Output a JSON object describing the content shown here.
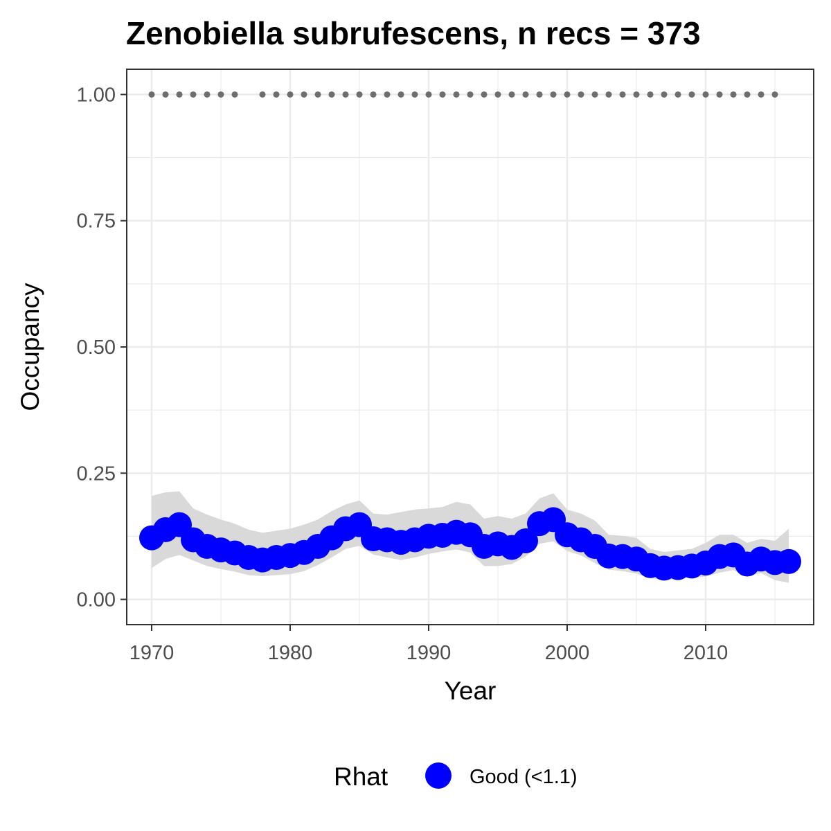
{
  "chart_data": {
    "type": "line",
    "title": "Zenobiella subrufescens, n recs = 373",
    "xlabel": "Year",
    "ylabel": "Occupancy",
    "xlim": [
      1968.2,
      2017.8
    ],
    "ylim": [
      -0.05,
      1.05
    ],
    "x_ticks": [
      1970,
      1980,
      1990,
      2000,
      2010
    ],
    "x_tick_labels": [
      "1970",
      "1980",
      "1990",
      "2000",
      "2010"
    ],
    "y_ticks": [
      0,
      0.25,
      0.5,
      0.75,
      1
    ],
    "y_tick_labels": [
      "0.00",
      "0.25",
      "0.50",
      "0.75",
      "1.00"
    ],
    "y_minor_ticks": [
      0.125,
      0.375,
      0.625,
      0.875
    ],
    "x_minor_ticks": [
      1975,
      1985,
      1995,
      2005,
      2015
    ],
    "grid": true,
    "legend": {
      "title": "Rhat",
      "position": "bottom",
      "entries": [
        {
          "label": "Good (<1.1)",
          "color": "#0000ff"
        }
      ]
    },
    "colors": {
      "points": "#0000ff",
      "ribbon": "#d9d9d9",
      "detections": "#6e6e6e",
      "grid": "#ebebeb",
      "panel_border": "#333333"
    },
    "series": [
      {
        "x": [
          1970,
          1971,
          1972,
          1973,
          1974,
          1975,
          1976,
          1977,
          1978,
          1979,
          1980,
          1981,
          1982,
          1983,
          1984,
          1985,
          1986,
          1987,
          1988,
          1989,
          1990,
          1991,
          1992,
          1993,
          1994,
          1995,
          1996,
          1997,
          1998,
          1999,
          2000,
          2001,
          2002,
          2003,
          2004,
          2005,
          2006,
          2007,
          2008,
          2009,
          2010,
          2011,
          2012,
          2013,
          2014,
          2015,
          2016
        ],
        "y": [
          0.122,
          0.138,
          0.148,
          0.118,
          0.105,
          0.098,
          0.092,
          0.083,
          0.078,
          0.083,
          0.087,
          0.093,
          0.105,
          0.122,
          0.14,
          0.148,
          0.12,
          0.118,
          0.113,
          0.118,
          0.125,
          0.127,
          0.133,
          0.128,
          0.105,
          0.11,
          0.103,
          0.116,
          0.15,
          0.158,
          0.128,
          0.118,
          0.105,
          0.086,
          0.085,
          0.08,
          0.067,
          0.062,
          0.063,
          0.066,
          0.072,
          0.085,
          0.088,
          0.07,
          0.08,
          0.073,
          0.075
        ],
        "lower": [
          0.062,
          0.08,
          0.088,
          0.077,
          0.066,
          0.06,
          0.055,
          0.048,
          0.046,
          0.048,
          0.05,
          0.056,
          0.068,
          0.083,
          0.1,
          0.106,
          0.089,
          0.083,
          0.078,
          0.083,
          0.09,
          0.095,
          0.099,
          0.093,
          0.066,
          0.066,
          0.07,
          0.085,
          0.11,
          0.115,
          0.096,
          0.087,
          0.072,
          0.059,
          0.056,
          0.051,
          0.042,
          0.038,
          0.04,
          0.044,
          0.045,
          0.053,
          0.058,
          0.046,
          0.052,
          0.038,
          0.033
        ],
        "upper": [
          0.205,
          0.212,
          0.214,
          0.18,
          0.168,
          0.158,
          0.15,
          0.138,
          0.132,
          0.136,
          0.14,
          0.148,
          0.158,
          0.175,
          0.188,
          0.196,
          0.17,
          0.168,
          0.173,
          0.178,
          0.18,
          0.183,
          0.193,
          0.188,
          0.16,
          0.165,
          0.16,
          0.17,
          0.2,
          0.21,
          0.178,
          0.17,
          0.156,
          0.128,
          0.126,
          0.122,
          0.1,
          0.094,
          0.097,
          0.1,
          0.112,
          0.128,
          0.128,
          0.112,
          0.12,
          0.116,
          0.14
        ]
      }
    ],
    "detections": {
      "y": 1.0,
      "x": [
        1970,
        1971,
        1972,
        1973,
        1974,
        1975,
        1976,
        1978,
        1979,
        1980,
        1981,
        1982,
        1983,
        1984,
        1985,
        1986,
        1987,
        1988,
        1989,
        1990,
        1991,
        1992,
        1993,
        1994,
        1995,
        1996,
        1997,
        1998,
        1999,
        2000,
        2001,
        2002,
        2003,
        2004,
        2005,
        2006,
        2007,
        2008,
        2009,
        2010,
        2011,
        2012,
        2013,
        2014,
        2015
      ]
    }
  }
}
